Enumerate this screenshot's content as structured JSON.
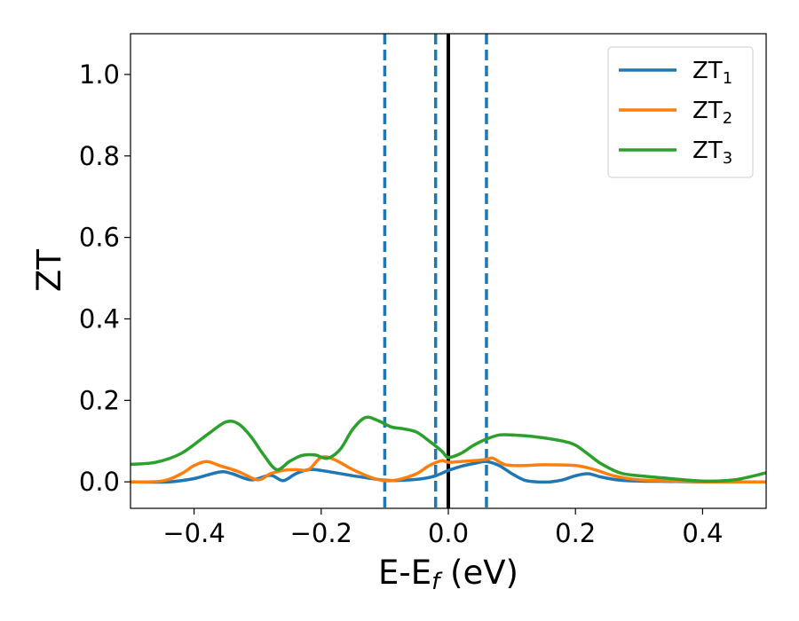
{
  "chart_data": {
    "type": "line",
    "xlabel": {
      "main": "E-E",
      "sub": "f",
      "rest": " (eV)"
    },
    "ylabel": "ZT",
    "xlim": [
      -0.5,
      0.5
    ],
    "ylim": [
      -0.065,
      1.1
    ],
    "xticks": [
      {
        "v": -0.4,
        "label": "−0.4"
      },
      {
        "v": -0.2,
        "label": "−0.2"
      },
      {
        "v": 0.0,
        "label": "0.0"
      },
      {
        "v": 0.2,
        "label": "0.2"
      },
      {
        "v": 0.4,
        "label": "0.4"
      }
    ],
    "yticks": [
      {
        "v": 0.0,
        "label": "0.0"
      },
      {
        "v": 0.2,
        "label": "0.2"
      },
      {
        "v": 0.4,
        "label": "0.4"
      },
      {
        "v": 0.6,
        "label": "0.6"
      },
      {
        "v": 0.8,
        "label": "0.8"
      },
      {
        "v": 1.0,
        "label": "1.0"
      }
    ],
    "grid": false,
    "legend_position": "top-right",
    "vlines_dashed": {
      "color": "#1f77b4",
      "x": [
        -0.1,
        -0.02,
        0.06
      ]
    },
    "vline_solid": {
      "color": "#000000",
      "x": 0.0
    },
    "series": [
      {
        "name": "ZT",
        "sub": "1",
        "color": "#1f77b4",
        "x": [
          -0.5,
          -0.44,
          -0.4,
          -0.36,
          -0.34,
          -0.31,
          -0.28,
          -0.26,
          -0.24,
          -0.22,
          -0.2,
          -0.15,
          -0.1,
          -0.07,
          -0.04,
          -0.02,
          0.0,
          0.02,
          0.04,
          0.06,
          0.08,
          0.1,
          0.12,
          0.14,
          0.16,
          0.18,
          0.2,
          0.22,
          0.24,
          0.27,
          0.3,
          0.35,
          0.4,
          0.45,
          0.5
        ],
        "y": [
          0.0,
          0.0,
          0.008,
          0.024,
          0.02,
          0.005,
          0.016,
          0.003,
          0.02,
          0.03,
          0.028,
          0.015,
          0.004,
          0.004,
          0.008,
          0.015,
          0.028,
          0.038,
          0.045,
          0.05,
          0.04,
          0.02,
          0.004,
          0.0,
          0.0,
          0.005,
          0.015,
          0.02,
          0.012,
          0.004,
          0.002,
          0.001,
          0.0,
          0.0,
          0.0
        ]
      },
      {
        "name": "ZT",
        "sub": "2",
        "color": "#ff7f0e",
        "x": [
          -0.5,
          -0.45,
          -0.42,
          -0.4,
          -0.38,
          -0.36,
          -0.33,
          -0.3,
          -0.28,
          -0.26,
          -0.24,
          -0.22,
          -0.2,
          -0.18,
          -0.15,
          -0.12,
          -0.1,
          -0.08,
          -0.05,
          -0.03,
          -0.01,
          0.0,
          0.02,
          0.04,
          0.06,
          0.07,
          0.09,
          0.12,
          0.15,
          0.2,
          0.23,
          0.26,
          0.3,
          0.35,
          0.4,
          0.45,
          0.5
        ],
        "y": [
          0.0,
          0.002,
          0.02,
          0.04,
          0.05,
          0.04,
          0.025,
          0.005,
          0.02,
          0.028,
          0.03,
          0.03,
          0.06,
          0.055,
          0.03,
          0.01,
          0.003,
          0.005,
          0.02,
          0.04,
          0.052,
          0.048,
          0.05,
          0.052,
          0.055,
          0.058,
          0.042,
          0.04,
          0.042,
          0.04,
          0.03,
          0.015,
          0.005,
          0.002,
          0.0,
          0.0,
          0.0
        ]
      },
      {
        "name": "ZT",
        "sub": "3",
        "color": "#2ca02c",
        "x": [
          -0.5,
          -0.46,
          -0.42,
          -0.38,
          -0.35,
          -0.33,
          -0.31,
          -0.29,
          -0.27,
          -0.25,
          -0.23,
          -0.21,
          -0.19,
          -0.17,
          -0.15,
          -0.13,
          -0.11,
          -0.09,
          -0.07,
          -0.05,
          -0.03,
          -0.01,
          0.0,
          0.02,
          0.04,
          0.06,
          0.08,
          0.1,
          0.14,
          0.18,
          0.2,
          0.22,
          0.24,
          0.27,
          0.3,
          0.35,
          0.4,
          0.45,
          0.5
        ],
        "y": [
          0.043,
          0.048,
          0.07,
          0.115,
          0.147,
          0.142,
          0.11,
          0.065,
          0.03,
          0.05,
          0.065,
          0.066,
          0.058,
          0.08,
          0.13,
          0.158,
          0.15,
          0.135,
          0.13,
          0.122,
          0.1,
          0.075,
          0.06,
          0.07,
          0.09,
          0.105,
          0.115,
          0.115,
          0.11,
          0.1,
          0.09,
          0.068,
          0.045,
          0.022,
          0.015,
          0.008,
          0.002,
          0.005,
          0.022
        ]
      }
    ]
  }
}
